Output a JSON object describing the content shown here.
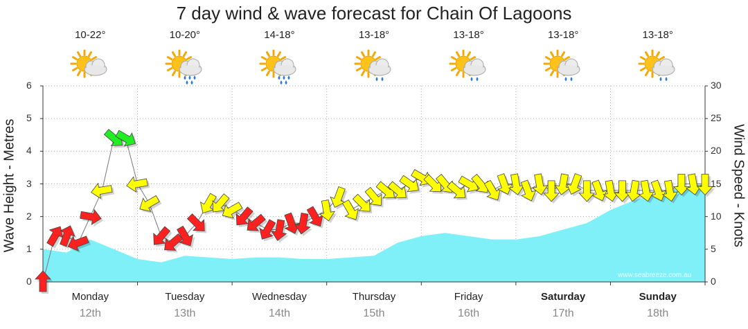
{
  "chart_data": {
    "type": "area",
    "title": "7 day wind & wave forecast for Chain Of Lagoons",
    "ylabel_left": "Wave Height - Metres",
    "ylabel_right": "Wind Speed - Knots",
    "ylim_left": [
      0,
      6
    ],
    "ylim_right": [
      0,
      30
    ],
    "yticks_left": [
      "0",
      "1",
      "2",
      "3",
      "4",
      "5",
      "6"
    ],
    "yticks_right": [
      "0",
      "5",
      "10",
      "15",
      "20",
      "25",
      "30"
    ],
    "grid": true,
    "days": [
      {
        "day": "Monday",
        "date": "12th",
        "temp": "10-22°",
        "icon": "sun-cloud-icon",
        "bold": false
      },
      {
        "day": "Tuesday",
        "date": "13th",
        "temp": "10-20°",
        "icon": "sun-cloud-rain-icon",
        "bold": false
      },
      {
        "day": "Wednesday",
        "date": "14th",
        "temp": "14-18°",
        "icon": "sun-cloud-rain-icon",
        "bold": false
      },
      {
        "day": "Thursday",
        "date": "15th",
        "temp": "13-18°",
        "icon": "sun-cloud-showers-icon",
        "bold": false
      },
      {
        "day": "Friday",
        "date": "16th",
        "temp": "13-18°",
        "icon": "sun-cloud-showers-icon",
        "bold": false
      },
      {
        "day": "Saturday",
        "date": "17th",
        "temp": "13-18°",
        "icon": "sun-cloud-showers-icon",
        "bold": true
      },
      {
        "day": "Sunday",
        "date": "18th",
        "temp": "13-18°",
        "icon": "sun-cloud-showers-icon",
        "bold": true
      }
    ],
    "wave_series": {
      "name": "Wave Height (m)",
      "color": "#80f0f8",
      "hours": [
        0,
        6,
        12,
        18,
        24,
        30,
        36,
        42,
        48,
        54,
        60,
        66,
        72,
        78,
        84,
        90,
        96,
        102,
        108,
        114,
        120,
        126,
        132,
        138,
        144,
        150,
        156,
        162,
        168
      ],
      "values": [
        1.0,
        0.9,
        1.3,
        1.0,
        0.7,
        0.6,
        0.8,
        0.75,
        0.7,
        0.75,
        0.75,
        0.7,
        0.7,
        0.75,
        0.8,
        1.2,
        1.4,
        1.5,
        1.4,
        1.3,
        1.3,
        1.4,
        1.6,
        1.8,
        2.2,
        2.5,
        2.7,
        2.9,
        3.0
      ]
    },
    "wind_series": {
      "name": "Wind Speed (knots)",
      "hours": [
        0,
        3,
        6,
        9,
        12,
        15,
        18,
        21,
        24,
        27,
        30,
        33,
        36,
        39,
        42,
        45,
        48,
        51,
        54,
        57,
        60,
        63,
        66,
        69,
        72,
        75,
        78,
        81,
        84,
        87,
        90,
        93,
        96,
        99,
        102,
        105,
        108,
        111,
        114,
        117,
        120,
        123,
        126,
        129,
        132,
        135,
        138,
        141,
        144,
        147,
        150,
        153,
        156,
        159,
        162,
        165,
        168
      ],
      "speed": [
        0,
        7,
        7,
        6,
        10,
        14,
        22,
        22,
        15,
        12,
        7,
        6,
        7,
        9,
        12,
        12,
        11,
        10,
        9,
        8,
        8,
        9,
        9,
        10,
        11,
        13,
        11,
        12,
        13,
        14,
        14,
        15,
        16,
        15,
        15,
        14,
        15,
        15,
        14,
        15,
        15,
        14,
        15,
        14,
        15,
        15,
        14,
        14,
        14,
        14,
        14,
        14,
        14,
        14,
        15,
        15,
        15
      ],
      "direction_deg": [
        270,
        300,
        290,
        160,
        10,
        170,
        40,
        30,
        170,
        150,
        130,
        140,
        60,
        45,
        120,
        130,
        150,
        130,
        140,
        120,
        100,
        70,
        100,
        60,
        80,
        110,
        60,
        45,
        50,
        40,
        40,
        35,
        30,
        45,
        50,
        40,
        30,
        50,
        60,
        70,
        80,
        70,
        80,
        90,
        100,
        110,
        90,
        70,
        80,
        90,
        100,
        80,
        70,
        80,
        90,
        80,
        90
      ]
    },
    "wind_colors": {
      "light": "#ff2020",
      "moderate": "#ffff00",
      "strong": "#22ee22"
    },
    "watermark": "www.seabreeze.com.au"
  }
}
